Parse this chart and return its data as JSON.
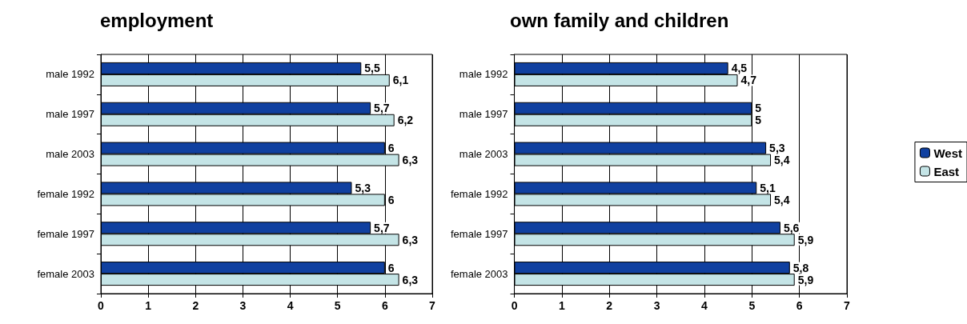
{
  "chart_data": [
    {
      "type": "bar",
      "orientation": "horizontal",
      "title": "employment",
      "categories": [
        "male 1992",
        "male 1997",
        "male 2003",
        "female 1992",
        "female 1997",
        "female 2003"
      ],
      "series": [
        {
          "color": "#1040a0",
          "values": [
            5.5,
            5.7,
            6,
            5.3,
            5.7,
            6
          ],
          "value_labels": [
            "5,5",
            "5,7",
            "6",
            "5,3",
            "5,7",
            "6"
          ]
        },
        {
          "color": "#c4e4e6",
          "values": [
            6.1,
            6.2,
            6.3,
            6,
            6.3,
            6.3
          ],
          "value_labels": [
            "6,1",
            "6,2",
            "6,3",
            "6",
            "6,3",
            "6,3"
          ]
        }
      ],
      "xlim": [
        0,
        7
      ],
      "xticks": [
        0,
        1,
        2,
        3,
        4,
        5,
        6,
        7
      ],
      "grid": "x",
      "legend": false
    },
    {
      "type": "bar",
      "orientation": "horizontal",
      "title": "own family and children",
      "categories": [
        "male 1992",
        "male 1997",
        "male 2003",
        "female 1992",
        "female 1997",
        "female 2003"
      ],
      "series": [
        {
          "name": "West",
          "color": "#1040a0",
          "values": [
            4.5,
            5,
            5.3,
            5.1,
            5.6,
            5.8
          ],
          "value_labels": [
            "4,5",
            "5",
            "5,3",
            "5,1",
            "5,6",
            "5,8"
          ]
        },
        {
          "name": "East",
          "color": "#c4e4e6",
          "values": [
            4.7,
            5,
            5.4,
            5.4,
            5.9,
            5.9
          ],
          "value_labels": [
            "4,7",
            "5",
            "5,4",
            "5,4",
            "5,9",
            "5,9"
          ]
        }
      ],
      "xlim": [
        0,
        7
      ],
      "xticks": [
        0,
        1,
        2,
        3,
        4,
        5,
        6,
        7
      ],
      "grid": "x",
      "legend": "right"
    }
  ]
}
